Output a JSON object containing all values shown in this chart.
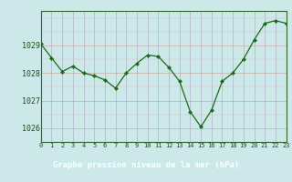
{
  "x": [
    0,
    1,
    2,
    3,
    4,
    5,
    6,
    7,
    8,
    9,
    10,
    11,
    12,
    13,
    14,
    15,
    16,
    17,
    18,
    19,
    20,
    21,
    22,
    23
  ],
  "y": [
    1029.05,
    1028.55,
    1028.05,
    1028.25,
    1028.0,
    1027.9,
    1027.75,
    1027.45,
    1028.0,
    1028.35,
    1028.65,
    1028.6,
    1028.2,
    1027.7,
    1026.6,
    1026.05,
    1026.65,
    1027.7,
    1028.0,
    1028.5,
    1029.2,
    1029.8,
    1029.9,
    1029.8
  ],
  "line_color": "#1a6b1a",
  "marker_color": "#1a6b1a",
  "bg_color": "#cce8e8",
  "grid_major_color": "#aaaacc",
  "grid_minor_color": "#e0b8b8",
  "title": "Graphe pression niveau de la mer (hPa)",
  "title_bg": "#336633",
  "title_fg": "#ffffff",
  "ylim": [
    1025.5,
    1030.25
  ],
  "yticks": [
    1026,
    1027,
    1028,
    1029
  ],
  "xlim": [
    0,
    23
  ],
  "xticks": [
    0,
    1,
    2,
    3,
    4,
    5,
    6,
    7,
    8,
    9,
    10,
    11,
    12,
    13,
    14,
    15,
    16,
    17,
    18,
    19,
    20,
    21,
    22,
    23
  ]
}
